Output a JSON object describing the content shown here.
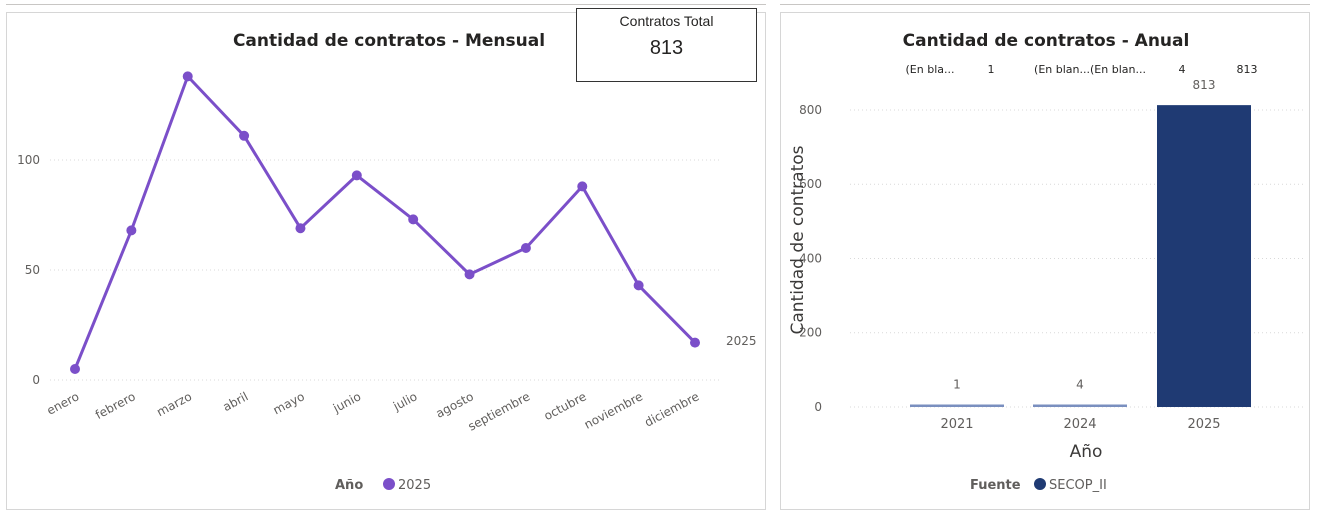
{
  "card": {
    "title": "Contratos Total",
    "value": "813"
  },
  "chart_data": [
    {
      "type": "line",
      "title": "Cantidad de contratos - Mensual",
      "categories": [
        "enero",
        "febrero",
        "marzo",
        "abril",
        "mayo",
        "junio",
        "julio",
        "agosto",
        "septiembre",
        "octubre",
        "noviembre",
        "diciembre"
      ],
      "series": [
        {
          "name": "2025",
          "values": [
            5,
            68,
            138,
            111,
            69,
            93,
            73,
            48,
            60,
            88,
            43,
            17
          ],
          "color": "#7b4fc9"
        }
      ],
      "yticks": [
        0,
        50,
        100
      ],
      "ylim": [
        0,
        150
      ],
      "grid": true,
      "legend": {
        "title": "Año",
        "position": "bottom"
      },
      "end_label": "2025"
    },
    {
      "type": "bar",
      "title": "Cantidad de contratos - Anual",
      "categories": [
        "2021",
        "2024",
        "2025"
      ],
      "values": [
        1,
        4,
        813
      ],
      "data_labels": [
        "1",
        "4",
        "813"
      ],
      "color": "#1f3a73",
      "xlabel": "Año",
      "ylabel": "Cantidad de contratos",
      "yticks": [
        0,
        200,
        400,
        600,
        800
      ],
      "ylim": [
        0,
        840
      ],
      "grid": true,
      "legend": {
        "title": "Fuente",
        "items": [
          {
            "name": "SECOP_II",
            "color": "#1f3a73"
          }
        ],
        "position": "bottom"
      },
      "top_row": [
        "(En bla...",
        "1",
        "(En blan...(En blan...",
        "4",
        "813"
      ]
    }
  ]
}
